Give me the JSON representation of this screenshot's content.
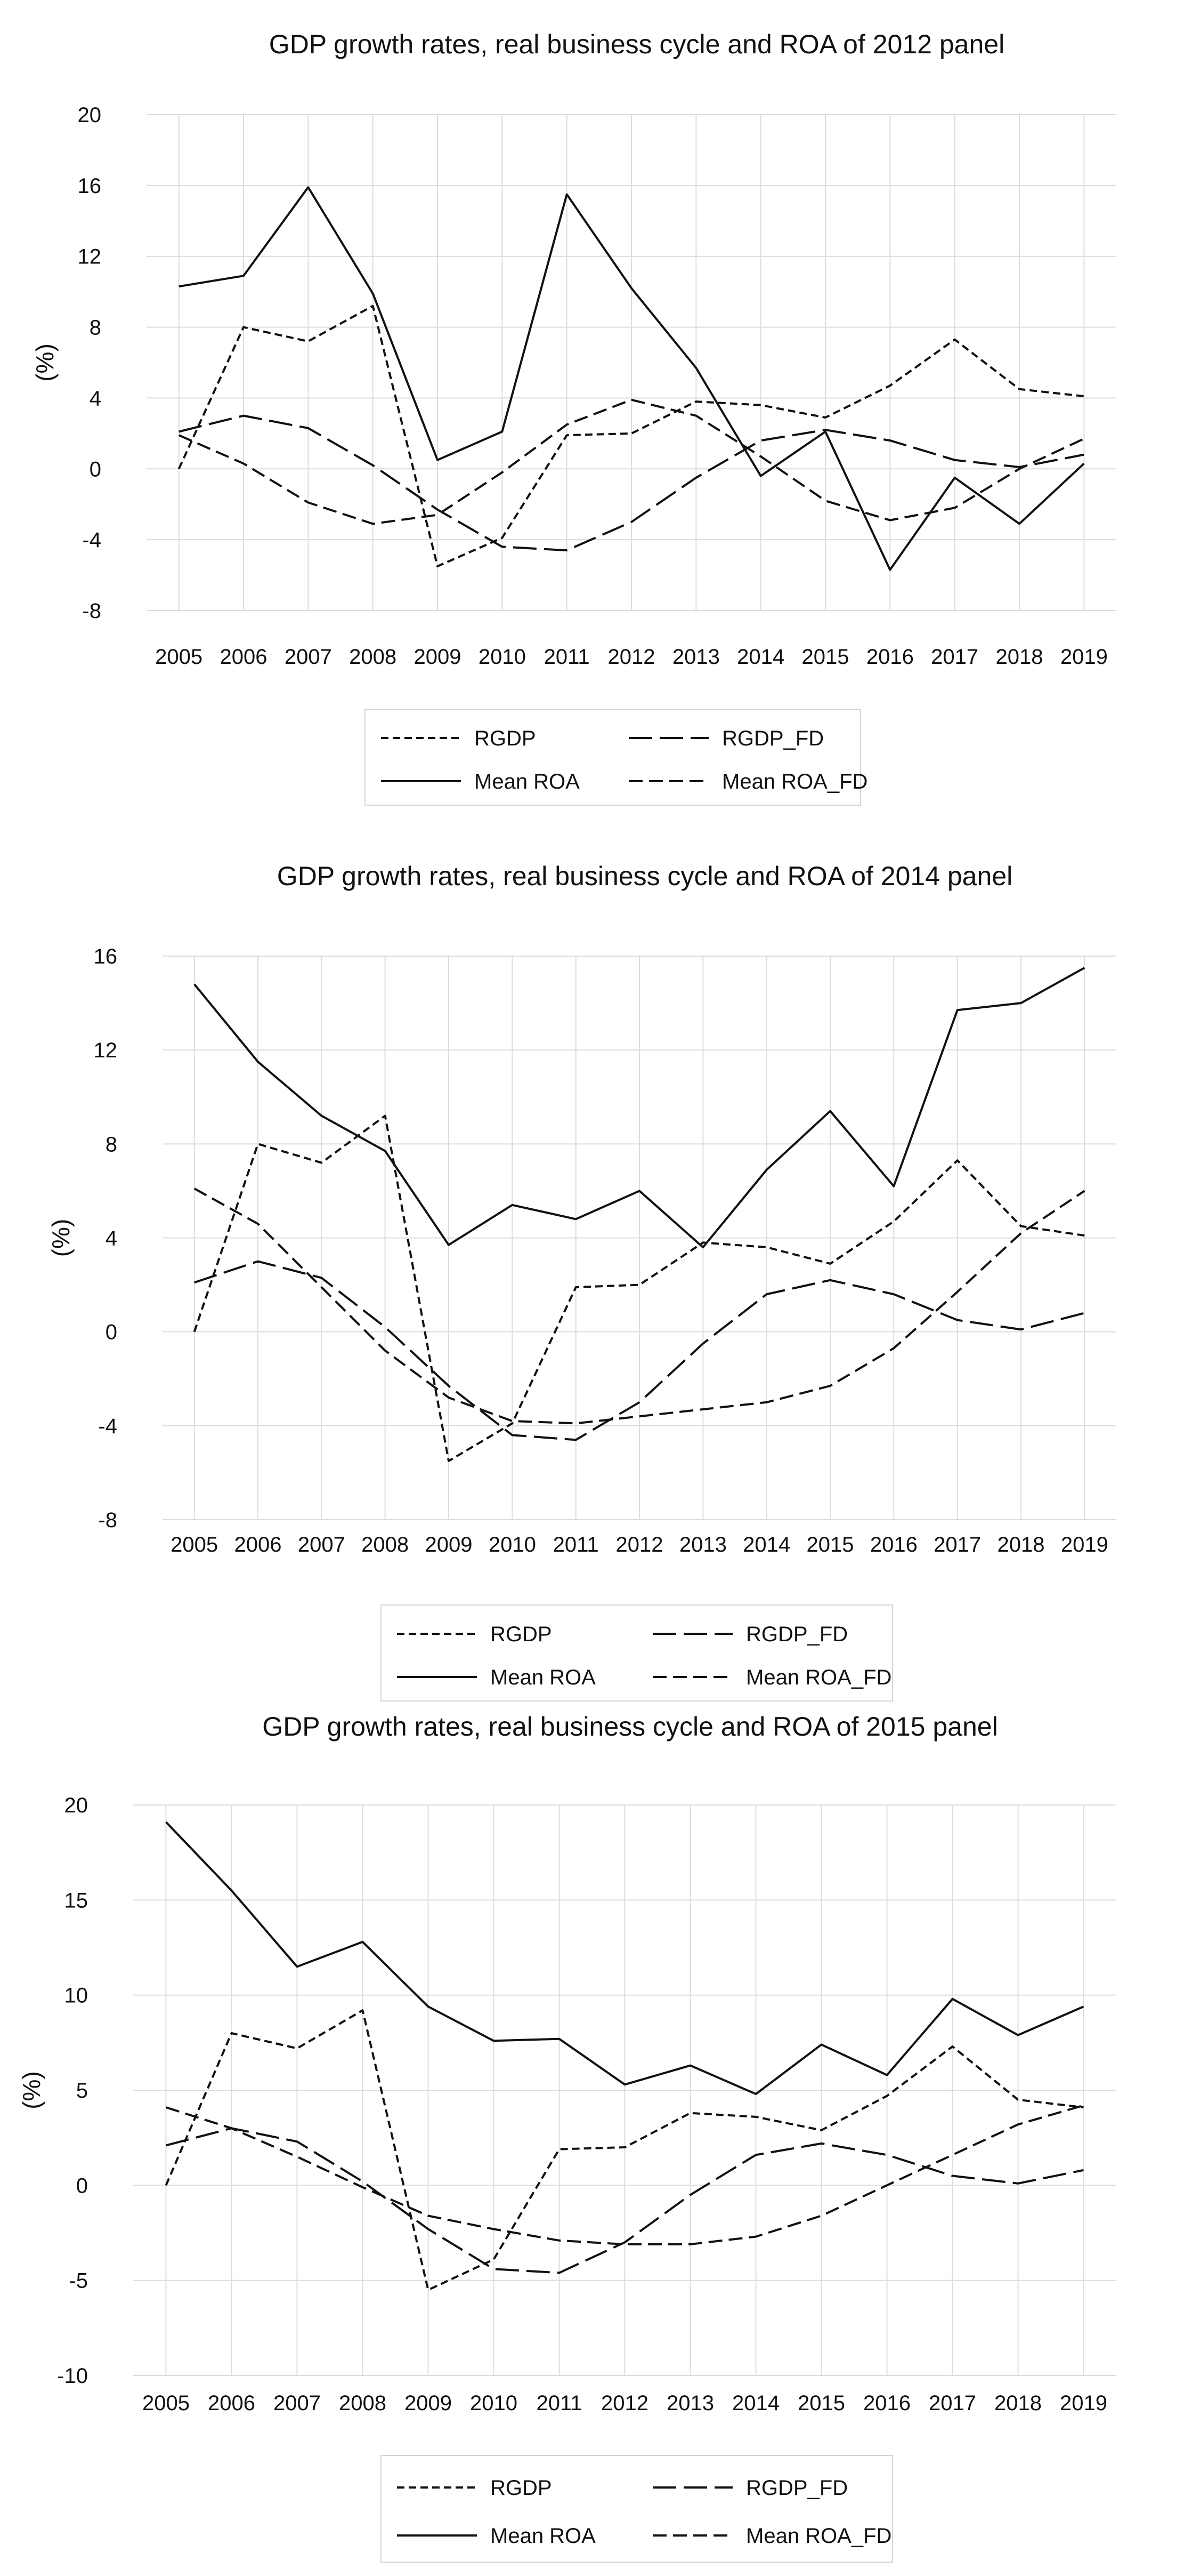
{
  "chart_data": [
    {
      "type": "line",
      "title": "GDP growth rates, real business cycle and ROA of 2012 panel",
      "ylabel": "(%)",
      "xlabel": "",
      "ylim": [
        -8,
        20
      ],
      "yticks": [
        -8,
        -4,
        0,
        4,
        8,
        12,
        16,
        20
      ],
      "grid": "horizontal",
      "legend": "bottom",
      "categories": [
        "2005",
        "2006",
        "2007",
        "2008",
        "2009",
        "2010",
        "2011",
        "2012",
        "2013",
        "2014",
        "2015",
        "2016",
        "2017",
        "2018",
        "2019"
      ],
      "series": [
        {
          "name": "RGDP",
          "style": "short-dash",
          "values": [
            0.0,
            8.0,
            7.2,
            9.2,
            -5.5,
            -3.9,
            1.9,
            2.0,
            3.8,
            3.6,
            2.9,
            4.7,
            7.3,
            4.5,
            4.1
          ]
        },
        {
          "name": "RGDP_FD",
          "style": "long-dash",
          "values": [
            2.1,
            3.0,
            2.3,
            0.2,
            -2.3,
            -4.4,
            -4.6,
            -3.0,
            -0.5,
            1.6,
            2.2,
            1.6,
            0.5,
            0.1,
            0.8
          ]
        },
        {
          "name": "Mean ROA",
          "style": "solid",
          "values": [
            10.3,
            10.9,
            15.9,
            9.9,
            0.5,
            2.1,
            15.5,
            10.2,
            5.7,
            -0.4,
            2.1,
            -5.7,
            -0.5,
            -3.1,
            0.3
          ]
        },
        {
          "name": "Mean ROA_FD",
          "style": "medium-dash",
          "values": [
            1.9,
            0.3,
            -1.9,
            -3.1,
            -2.6,
            -0.2,
            2.5,
            3.9,
            3.0,
            0.7,
            -1.8,
            -2.9,
            -2.2,
            0.0,
            1.7
          ]
        }
      ]
    },
    {
      "type": "line",
      "title": "GDP growth rates, real business cycle and ROA of 2014 panel",
      "ylabel": "(%)",
      "xlabel": "",
      "ylim": [
        -8,
        16
      ],
      "yticks": [
        -8,
        -4,
        0,
        4,
        8,
        12,
        16
      ],
      "grid": "horizontal",
      "legend": "bottom",
      "categories": [
        "2005",
        "2006",
        "2007",
        "2008",
        "2009",
        "2010",
        "2011",
        "2012",
        "2013",
        "2014",
        "2015",
        "2016",
        "2017",
        "2018",
        "2019"
      ],
      "series": [
        {
          "name": "RGDP",
          "style": "short-dash",
          "values": [
            0.0,
            8.0,
            7.2,
            9.2,
            -5.5,
            -3.9,
            1.9,
            2.0,
            3.8,
            3.6,
            2.9,
            4.7,
            7.3,
            4.5,
            4.1
          ]
        },
        {
          "name": "RGDP_FD",
          "style": "long-dash",
          "values": [
            2.1,
            3.0,
            2.3,
            0.2,
            -2.3,
            -4.4,
            -4.6,
            -3.0,
            -0.5,
            1.6,
            2.2,
            1.6,
            0.5,
            0.1,
            0.8
          ]
        },
        {
          "name": "Mean ROA",
          "style": "solid",
          "values": [
            14.8,
            11.5,
            9.2,
            7.7,
            3.7,
            5.4,
            4.8,
            6.0,
            3.6,
            6.9,
            9.4,
            6.2,
            13.7,
            14.0,
            15.5
          ]
        },
        {
          "name": "Mean ROA_FD",
          "style": "medium-dash",
          "values": [
            6.1,
            4.6,
            1.9,
            -0.8,
            -2.8,
            -3.8,
            -3.9,
            -3.6,
            -3.3,
            -3.0,
            -2.3,
            -0.7,
            1.7,
            4.2,
            6.0
          ]
        }
      ]
    },
    {
      "type": "line",
      "title": "GDP growth rates, real business cycle and ROA of 2015 panel",
      "ylabel": "(%)",
      "xlabel": "",
      "ylim": [
        -10,
        20
      ],
      "yticks": [
        -10,
        -5,
        0,
        5,
        10,
        15,
        20
      ],
      "grid": "horizontal",
      "legend": "bottom",
      "categories": [
        "2005",
        "2006",
        "2007",
        "2008",
        "2009",
        "2010",
        "2011",
        "2012",
        "2013",
        "2014",
        "2015",
        "2016",
        "2017",
        "2018",
        "2019"
      ],
      "series": [
        {
          "name": "RGDP",
          "style": "short-dash",
          "values": [
            0.0,
            8.0,
            7.2,
            9.2,
            -5.5,
            -3.9,
            1.9,
            2.0,
            3.8,
            3.6,
            2.9,
            4.7,
            7.3,
            4.5,
            4.1
          ]
        },
        {
          "name": "RGDP_FD",
          "style": "long-dash",
          "values": [
            2.1,
            3.0,
            2.3,
            0.2,
            -2.3,
            -4.4,
            -4.6,
            -3.0,
            -0.5,
            1.6,
            2.2,
            1.6,
            0.5,
            0.1,
            0.8
          ]
        },
        {
          "name": "Mean ROA",
          "style": "solid",
          "values": [
            19.1,
            15.5,
            11.5,
            12.8,
            9.4,
            7.6,
            7.7,
            5.3,
            6.3,
            4.8,
            7.4,
            5.8,
            9.8,
            7.9,
            9.4
          ]
        },
        {
          "name": "Mean ROA_FD",
          "style": "medium-dash",
          "values": [
            4.1,
            3.0,
            1.5,
            -0.1,
            -1.6,
            -2.3,
            -2.9,
            -3.1,
            -3.1,
            -2.7,
            -1.6,
            0.0,
            1.6,
            3.2,
            4.2
          ]
        }
      ]
    }
  ]
}
